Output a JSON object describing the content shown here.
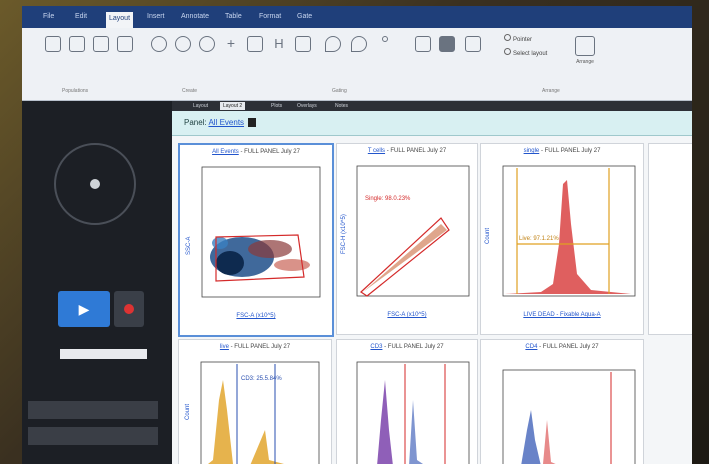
{
  "ribbon": {
    "tabs": [
      "File",
      "Edit",
      "Layout",
      "Insert",
      "Annotate",
      "Table",
      "Format",
      "Gate"
    ],
    "active_tab": "Layout",
    "buttons": [
      "",
      "",
      "",
      "",
      "",
      "",
      "",
      "",
      "",
      "",
      "",
      "",
      "",
      "",
      "",
      "",
      "",
      ""
    ],
    "text_options": [
      "Pointer",
      "Select layout"
    ],
    "arrange_label": "Arrange",
    "groups": [
      "Populations",
      "Create",
      "Gating",
      "Arrange"
    ]
  },
  "left_panel": {
    "field_value": ""
  },
  "tabs": [
    "Layout",
    "Layout 2",
    "Plots",
    "Overlays",
    "Notes"
  ],
  "workspace": {
    "title_prefix": "Panel:",
    "title_link": "All Events"
  },
  "plots": [
    {
      "pop": "All Events",
      "rest": "- FULL PANEL July 27",
      "xlabel": "FSC-A (x10^5)",
      "ylabel": "SSC-A",
      "gate_label": ""
    },
    {
      "pop": "T cells",
      "rest": "- FULL PANEL July 27",
      "xlabel": "FSC-A (x10^5)",
      "ylabel": "FSC-H (x10^5)",
      "gate_label": "Single: 98.0.23%"
    },
    {
      "pop": "single",
      "rest": "- FULL PANEL July 27",
      "xlabel": "LIVE DEAD - Fixable Aqua-A",
      "ylabel": "Count",
      "gate_label": "Live: 97.1.21%"
    },
    {
      "pop": "live",
      "rest": "- FULL PANEL July 27",
      "xlabel": "",
      "ylabel": "Count",
      "gate_label": "CD3: 25.5.84%"
    },
    {
      "pop": "CD3",
      "rest": "- FULL PANEL July 27",
      "xlabel": "",
      "ylabel": "",
      "gate_label": ""
    },
    {
      "pop": "CD4",
      "rest": "- FULL PANEL July 27",
      "xlabel": "",
      "ylabel": "",
      "gate_label": ""
    }
  ]
}
